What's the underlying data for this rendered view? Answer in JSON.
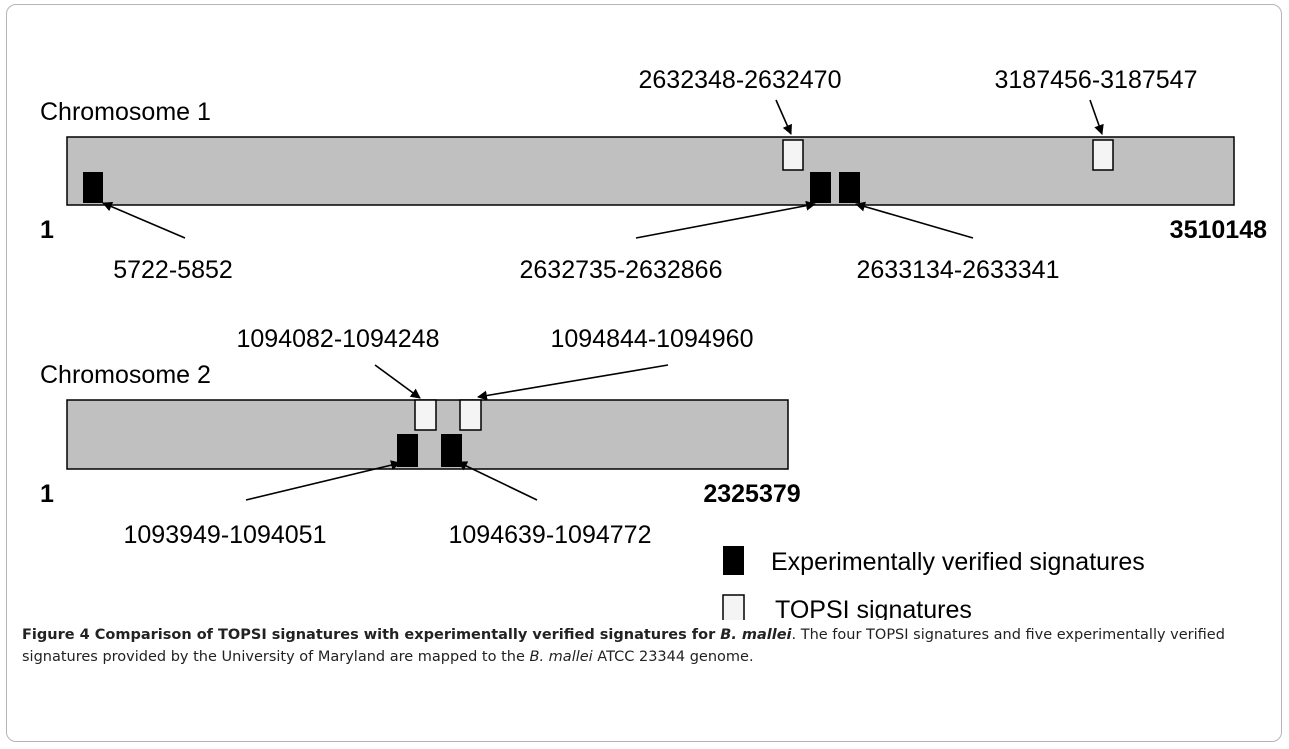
{
  "diagram": {
    "chromosome1": {
      "label": "Chromosome 1",
      "start": "1",
      "end": "3510148",
      "topsi_labels": [
        "2632348-2632470",
        "3187456-3187547"
      ],
      "experimental_labels": [
        "5722-5852",
        "2632735-2632866",
        "2633134-2633341"
      ]
    },
    "chromosome2": {
      "label": "Chromosome 2",
      "start": "1",
      "end": "2325379",
      "topsi_labels": [
        "1094082-1094248",
        "1094844-1094960"
      ],
      "experimental_labels": [
        "1093949-1094051",
        "1094639-1094772"
      ]
    },
    "legend": {
      "experimental": "Experimentally verified signatures",
      "topsi": "TOPSI signatures"
    },
    "colors": {
      "chromosome_fill": "#c0c0c0",
      "experimental_fill": "#000000",
      "topsi_fill": "#f4f4f4"
    }
  },
  "caption": {
    "bold_prefix": "Figure 4 Comparison of TOPSI signatures with experimentally verified signatures for ",
    "bold_italic_species": "B. mallei",
    "text1": ". The four TOPSI signatures and five experimentally verified signatures provided by the University of Maryland are mapped to the ",
    "italic_species": "B. mallei",
    "text2": " ATCC 23344 genome."
  }
}
